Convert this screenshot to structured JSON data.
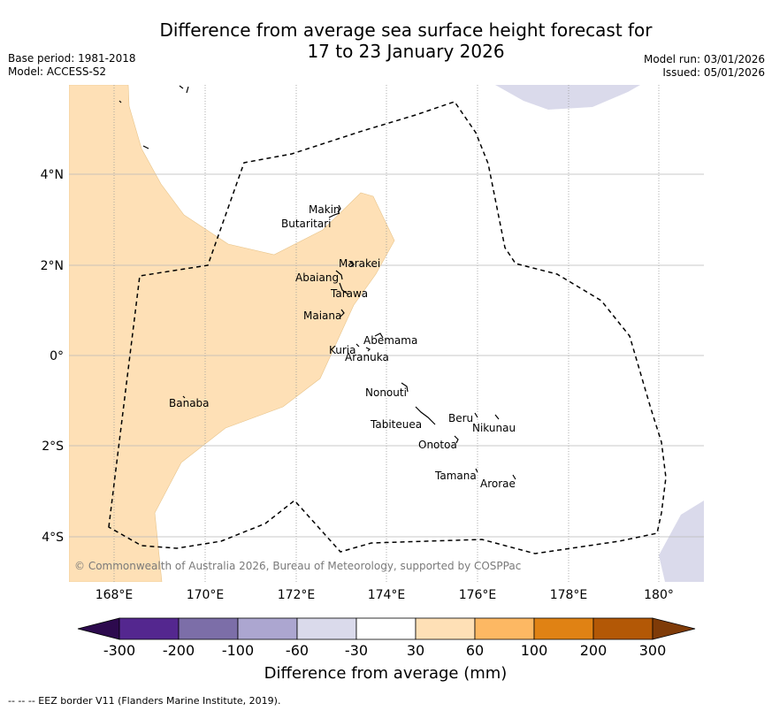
{
  "title": {
    "line1": "Difference from average sea surface height forecast for",
    "line2": "17 to 23 January 2026"
  },
  "meta_left": {
    "base_period": "Base period: 1981-2018",
    "model": "Model: ACCESS-S2"
  },
  "meta_right": {
    "model_run": "Model run: 03/01/2026",
    "issued": "Issued: 05/01/2026"
  },
  "axes": {
    "lon_ticks": [
      "168°E",
      "170°E",
      "172°E",
      "174°E",
      "176°E",
      "178°E",
      "180°"
    ],
    "lat_ticks": [
      "4°N",
      "2°N",
      "0°",
      "2°S",
      "4°S"
    ]
  },
  "places": [
    {
      "name": "Makin"
    },
    {
      "name": "Butaritari"
    },
    {
      "name": "Marakei"
    },
    {
      "name": "Abaiang"
    },
    {
      "name": "Tarawa"
    },
    {
      "name": "Maiana"
    },
    {
      "name": "Abemama"
    },
    {
      "name": "Kuria"
    },
    {
      "name": "Aranuka"
    },
    {
      "name": "Nonouti"
    },
    {
      "name": "Banaba"
    },
    {
      "name": "Tabiteuea"
    },
    {
      "name": "Beru"
    },
    {
      "name": "Nikunau"
    },
    {
      "name": "Onotoa"
    },
    {
      "name": "Tamana"
    },
    {
      "name": "Arorae"
    }
  ],
  "copyright": "© Commonwealth of Australia 2026, Bureau of Meteorology, supported by COSPPac",
  "colorbar": {
    "label": "Difference from average (mm)",
    "ticks": [
      "-300",
      "-200",
      "-100",
      "-60",
      "-30",
      "30",
      "60",
      "100",
      "200",
      "300"
    ],
    "colors": {
      "under": "#2d0a4e",
      "bins": [
        "#54278f",
        "#7c6ea8",
        "#aca6d0",
        "#dadaeb",
        "#ffffff",
        "#fee0b6",
        "#fdb863",
        "#e08214",
        "#b35806"
      ],
      "over": "#7f3b08"
    }
  },
  "legend_note": "--  --  -- EEZ border V11 (Flanders Marine Institute, 2019)."
}
